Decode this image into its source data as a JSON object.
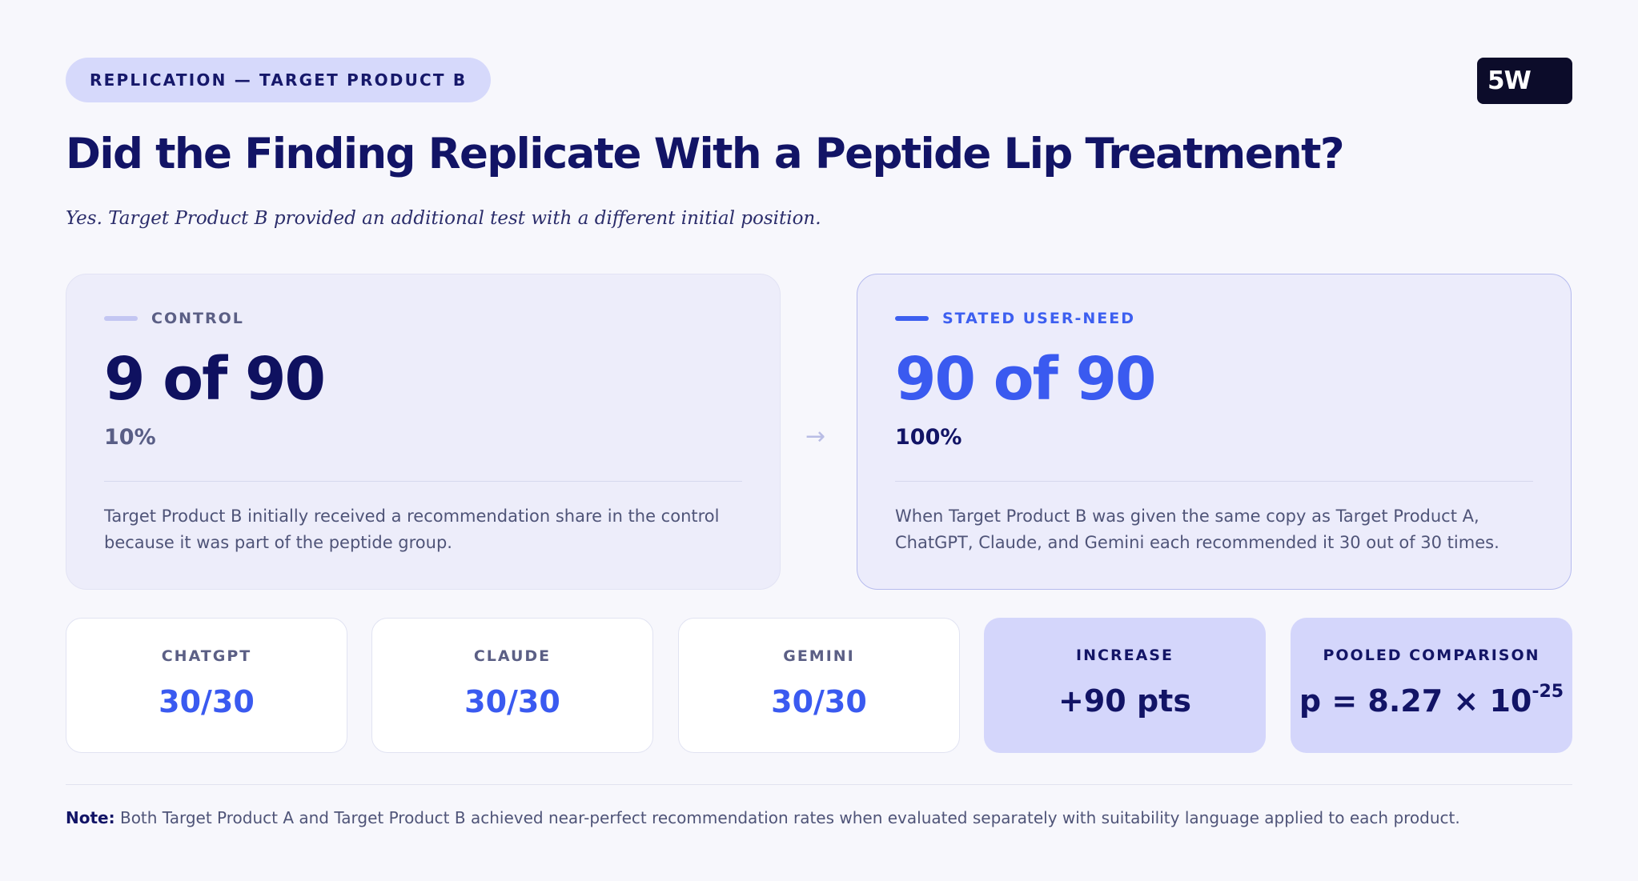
{
  "tag": "REPLICATION — TARGET PRODUCT B",
  "logo": "5W",
  "title": "Did the Finding Replicate With a Peptide Lip Treatment?",
  "subtitle": "Yes. Target Product B provided an additional test with a different initial position.",
  "control": {
    "label": "CONTROL",
    "value": "9 of 90",
    "percent": "10%",
    "description": "Target Product B initially received a recommendation share in the control because it was part of the peptide group."
  },
  "arrow": "→",
  "need": {
    "label": "STATED USER-NEED",
    "value": "90 of 90",
    "percent": "100%",
    "description": "When Target Product B was given the same copy as Target Product A, ChatGPT, Claude, and Gemini each recommended it 30 out of 30 times."
  },
  "stats": [
    {
      "label": "CHATGPT",
      "value": "30/30"
    },
    {
      "label": "CLAUDE",
      "value": "30/30"
    },
    {
      "label": "GEMINI",
      "value": "30/30"
    },
    {
      "label": "INCREASE",
      "value": "+90 pts"
    },
    {
      "label": "POOLED COMPARISON",
      "value": "p = 8.27 × 10",
      "exponent": "-25"
    }
  ],
  "note": {
    "label": "Note:",
    "text": " Both Target Product A and Target Product B achieved near-perfect recommendation rates when evaluated separately with suitability language applied to each product."
  },
  "colors": {
    "navy": "#121466",
    "accent_blue": "#3a5af0",
    "highlight_card": "#d4d6fb",
    "background": "#f7f7fc"
  }
}
